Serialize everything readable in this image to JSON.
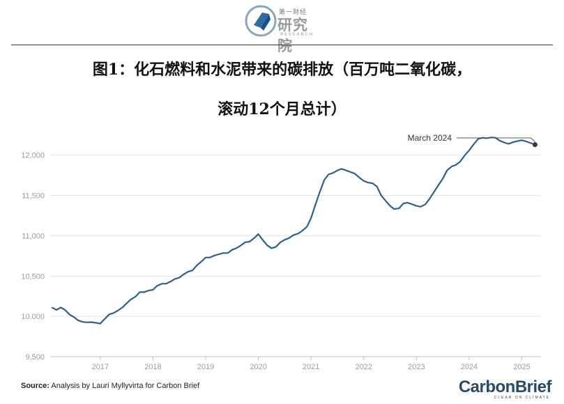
{
  "header": {
    "logo_top": "第一财经",
    "logo_main": "研究院",
    "logo_sub": "RESEARCH"
  },
  "title_line1": "图1：化石燃料和水泥带来的碳排放（百万吨二氧化碳，",
  "title_line2": "滚动12个月总计）",
  "footer": {
    "source_label": "Source:",
    "source_text": " Analysis by Lauri Myllyvirta for Carbon Brief",
    "brand": "CarbonBrief",
    "brand_tag": "CLEAR ON CLIMATE"
  },
  "colors": {
    "line": "#2f5f87",
    "grid": "#e3e3e3",
    "axis_text": "#9a9a9a"
  },
  "chart_data": {
    "type": "line",
    "ylim": [
      9500,
      12300
    ],
    "yticks": [
      9500,
      10000,
      10500,
      11000,
      11500,
      12000
    ],
    "ytick_labels": [
      "9,500",
      "10,000",
      "10,500",
      "11,000",
      "11,500",
      "12,000"
    ],
    "xticks": [
      2017,
      2018,
      2019,
      2020,
      2021,
      2022,
      2023,
      2024,
      2025
    ],
    "xlim": [
      2016.05,
      2025.35
    ],
    "grid": true,
    "annotation": {
      "text": "March 2024",
      "x": 2025.25,
      "y": 12130
    },
    "series": [
      {
        "x": [
          2016.08,
          2016.17,
          2016.25,
          2016.33,
          2016.42,
          2016.5,
          2016.58,
          2016.67,
          2016.75,
          2016.83,
          2016.92,
          2017.0,
          2017.08,
          2017.17,
          2017.25,
          2017.33,
          2017.42,
          2017.5,
          2017.58,
          2017.67,
          2017.75,
          2017.83,
          2017.92,
          2018.0,
          2018.08,
          2018.17,
          2018.25,
          2018.33,
          2018.42,
          2018.5,
          2018.58,
          2018.67,
          2018.75,
          2018.83,
          2018.92,
          2019.0,
          2019.08,
          2019.17,
          2019.25,
          2019.33,
          2019.42,
          2019.5,
          2019.58,
          2019.67,
          2019.75,
          2019.83,
          2019.92,
          2020.0,
          2020.08,
          2020.17,
          2020.25,
          2020.33,
          2020.42,
          2020.5,
          2020.58,
          2020.67,
          2020.75,
          2020.83,
          2020.92,
          2021.0,
          2021.08,
          2021.17,
          2021.25,
          2021.33,
          2021.42,
          2021.5,
          2021.58,
          2021.67,
          2021.75,
          2021.83,
          2021.92,
          2022.0,
          2022.08,
          2022.17,
          2022.25,
          2022.33,
          2022.42,
          2022.5,
          2022.58,
          2022.67,
          2022.75,
          2022.83,
          2022.92,
          2023.0,
          2023.08,
          2023.17,
          2023.25,
          2023.33,
          2023.42,
          2023.5,
          2023.58,
          2023.67,
          2023.75,
          2023.83,
          2023.92,
          2024.0,
          2024.08,
          2024.17,
          2024.25,
          2024.33,
          2024.42,
          2024.5,
          2024.58,
          2024.67,
          2024.75,
          2024.83,
          2024.92,
          2025.0,
          2025.08,
          2025.17,
          2025.25
        ],
        "y": [
          10110,
          10080,
          10110,
          10080,
          10020,
          9990,
          9950,
          9930,
          9925,
          9928,
          9918,
          9910,
          9965,
          10025,
          10040,
          10070,
          10110,
          10160,
          10210,
          10245,
          10300,
          10300,
          10320,
          10330,
          10380,
          10405,
          10405,
          10430,
          10465,
          10480,
          10520,
          10555,
          10570,
          10630,
          10680,
          10730,
          10730,
          10755,
          10770,
          10785,
          10785,
          10825,
          10845,
          10880,
          10920,
          10925,
          10970,
          11020,
          10950,
          10880,
          10845,
          10860,
          10920,
          10950,
          10970,
          11010,
          11025,
          11060,
          11110,
          11220,
          11380,
          11550,
          11690,
          11760,
          11780,
          11810,
          11830,
          11810,
          11790,
          11770,
          11720,
          11680,
          11660,
          11650,
          11610,
          11500,
          11430,
          11370,
          11330,
          11340,
          11400,
          11410,
          11390,
          11370,
          11360,
          11390,
          11460,
          11540,
          11630,
          11710,
          11810,
          11860,
          11880,
          11920,
          12000,
          12060,
          12130,
          12200,
          12215,
          12210,
          12220,
          12215,
          12180,
          12155,
          12140,
          12160,
          12175,
          12185,
          12170,
          12150,
          12130
        ]
      }
    ]
  }
}
